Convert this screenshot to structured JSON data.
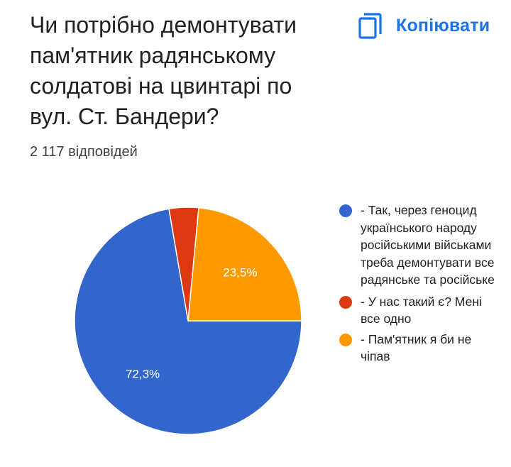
{
  "header": {
    "title": "Чи потрібно демонтувати пам'ятник радянському солдатові на цвинтарі по вул. Ст. Бандери?",
    "copy_label": "Копіювати",
    "copy_icon": "copy-icon",
    "responses": "2 117 відповідей"
  },
  "colors": {
    "accent": "#1a73e8"
  },
  "chart_data": {
    "type": "pie",
    "slices": [
      {
        "label": "- Так, через геноцид українського народу російськими військами треба демонтувати все радянське та російське",
        "value": 72.3,
        "display": "72,3%",
        "color": "#3366cc"
      },
      {
        "label": "- У нас такий є? Мені все одно",
        "value": 4.2,
        "display": "",
        "color": "#dc3912"
      },
      {
        "label": "- Пам'ятник я би не чіпав",
        "value": 23.5,
        "display": "23,5%",
        "color": "#ff9900"
      }
    ],
    "start_angle_deg": 0,
    "direction": "clockwise",
    "legend_position": "right"
  }
}
